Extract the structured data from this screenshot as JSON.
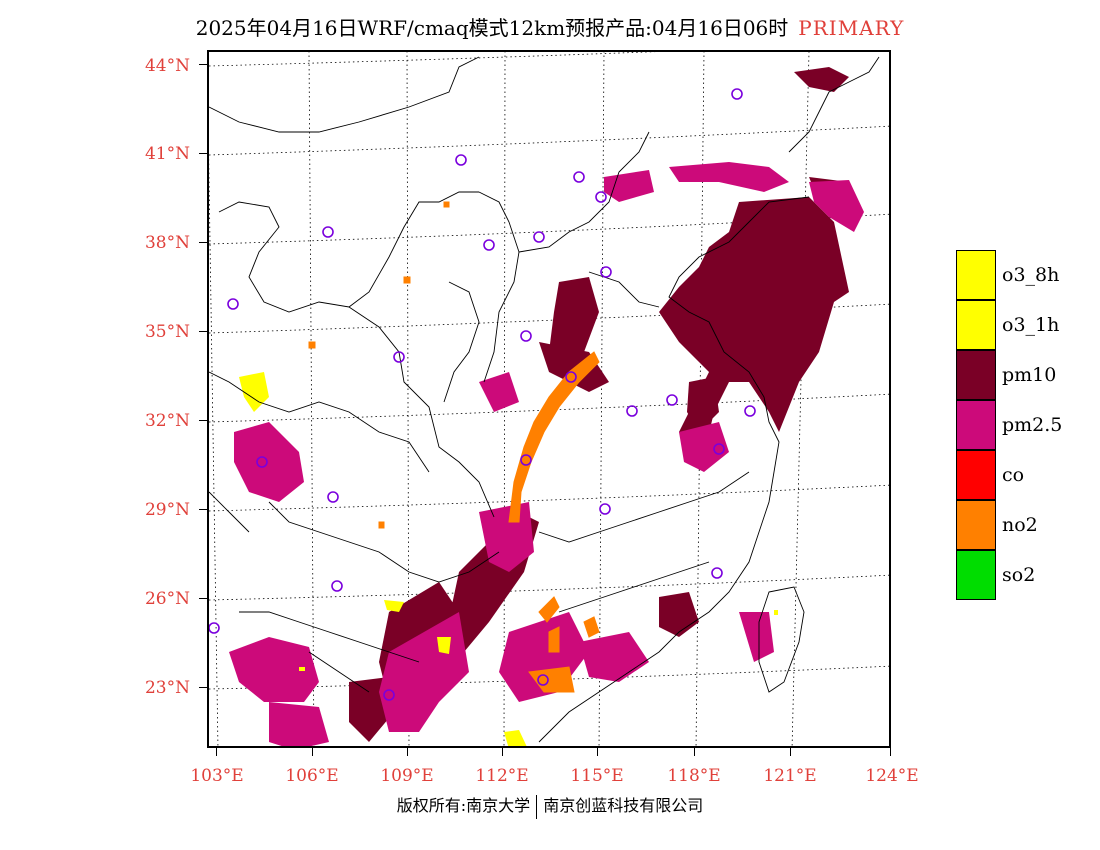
{
  "header": {
    "title": "2025年04月16日WRF/cmaq模式12km预报产品:04月16日06时",
    "tag": "PRIMARY"
  },
  "axes": {
    "lat_labels": [
      "44°N",
      "41°N",
      "38°N",
      "35°N",
      "32°N",
      "29°N",
      "26°N",
      "23°N"
    ],
    "lon_labels": [
      "103°E",
      "106°E",
      "109°E",
      "112°E",
      "115°E",
      "118°E",
      "121°E",
      "124°E"
    ]
  },
  "legend": {
    "items": [
      {
        "label": "o3_8h",
        "color": "#ffff00"
      },
      {
        "label": "o3_1h",
        "color": "#ffff00"
      },
      {
        "label": "pm10",
        "color": "#7a0026"
      },
      {
        "label": "pm2.5",
        "color": "#cc0a7a"
      },
      {
        "label": "co",
        "color": "#ff0000"
      },
      {
        "label": "no2",
        "color": "#ff8000"
      },
      {
        "label": "so2",
        "color": "#00dd00"
      }
    ]
  },
  "colors": {
    "pm10": "#7a0026",
    "pm25": "#cc0a7a",
    "no2": "#ff8000",
    "o3": "#ffff00",
    "station": "#7a00dd",
    "label": "#e0403a"
  },
  "footer": {
    "left": "版权所有:南京大学",
    "right": "南京创蓝科技有限公司"
  }
}
